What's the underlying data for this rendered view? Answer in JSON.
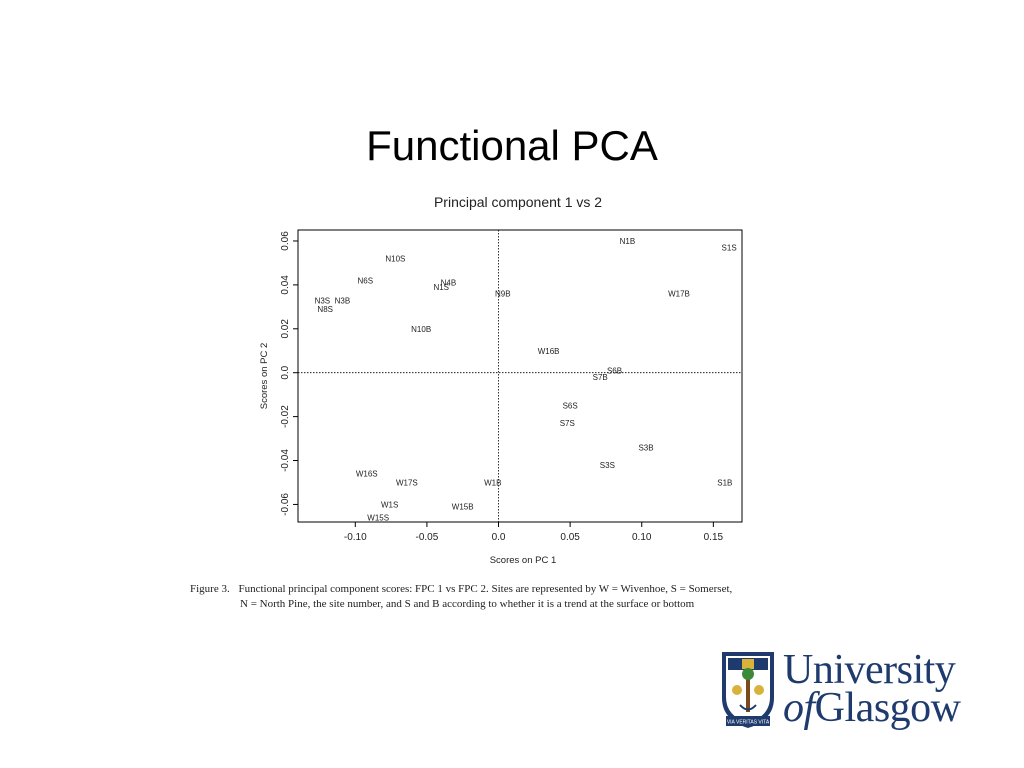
{
  "slide": {
    "title": "Functional PCA"
  },
  "chart_data": {
    "type": "scatter",
    "title": "Principal component 1 vs 2",
    "xlabel": "Scores on PC 1",
    "ylabel": "Scores on PC 2",
    "xlim": [
      -0.14,
      0.17
    ],
    "ylim": [
      -0.068,
      0.065
    ],
    "xticks": [
      -0.1,
      -0.05,
      0.0,
      0.05,
      0.1,
      0.15
    ],
    "xtick_labels": [
      "-0.10",
      "-0.05",
      "0.0",
      "0.05",
      "0.10",
      "0.15"
    ],
    "yticks": [
      -0.06,
      -0.04,
      -0.02,
      0.0,
      0.02,
      0.04,
      0.06
    ],
    "ytick_labels": [
      "-0.06",
      "-0.04",
      "-0.02",
      "0.0",
      "0.02",
      "0.04",
      "0.06"
    ],
    "reference_lines": {
      "x": 0,
      "y": 0,
      "style": "dotted"
    },
    "points": [
      {
        "label": "N1B",
        "x": 0.09,
        "y": 0.06
      },
      {
        "label": "S1S",
        "x": 0.161,
        "y": 0.057
      },
      {
        "label": "N10S",
        "x": -0.072,
        "y": 0.052
      },
      {
        "label": "N6S",
        "x": -0.093,
        "y": 0.042
      },
      {
        "label": "N4B",
        "x": -0.035,
        "y": 0.041
      },
      {
        "label": "N1S",
        "x": -0.04,
        "y": 0.039
      },
      {
        "label": "N9B",
        "x": 0.003,
        "y": 0.036
      },
      {
        "label": "W17B",
        "x": 0.126,
        "y": 0.036
      },
      {
        "label": "N3S",
        "x": -0.123,
        "y": 0.033
      },
      {
        "label": "N3B",
        "x": -0.109,
        "y": 0.033
      },
      {
        "label": "N8S",
        "x": -0.121,
        "y": 0.029
      },
      {
        "label": "N10B",
        "x": -0.054,
        "y": 0.02
      },
      {
        "label": "W16B",
        "x": 0.035,
        "y": 0.01
      },
      {
        "label": "S6B",
        "x": 0.081,
        "y": 0.001
      },
      {
        "label": "S7B",
        "x": 0.071,
        "y": -0.002
      },
      {
        "label": "S6S",
        "x": 0.05,
        "y": -0.015
      },
      {
        "label": "S7S",
        "x": 0.048,
        "y": -0.023
      },
      {
        "label": "S3B",
        "x": 0.103,
        "y": -0.034
      },
      {
        "label": "S3S",
        "x": 0.076,
        "y": -0.042
      },
      {
        "label": "W16S",
        "x": -0.092,
        "y": -0.046
      },
      {
        "label": "W1B",
        "x": -0.004,
        "y": -0.05
      },
      {
        "label": "S1B",
        "x": 0.158,
        "y": -0.05
      },
      {
        "label": "W17S",
        "x": -0.064,
        "y": -0.05
      },
      {
        "label": "W1S",
        "x": -0.076,
        "y": -0.06
      },
      {
        "label": "W15B",
        "x": -0.025,
        "y": -0.061
      },
      {
        "label": "W15S",
        "x": -0.084,
        "y": -0.066
      }
    ]
  },
  "caption": {
    "figure_label": "Figure 3.",
    "line1": "Functional principal component scores: FPC 1 vs FPC 2. Sites are represented by W = Wivenhoe, S = Somerset,",
    "line2": "N = North Pine, the site number, and S and B according to whether it is a trend at the surface or bottom"
  },
  "logo": {
    "line1": "University",
    "of": "of",
    "glasgow": "Glasgow",
    "motto": "VIA VERITAS VITA",
    "navy": "#1f3b6e",
    "gold": "#d9b23a",
    "green": "#3a8a3a"
  }
}
